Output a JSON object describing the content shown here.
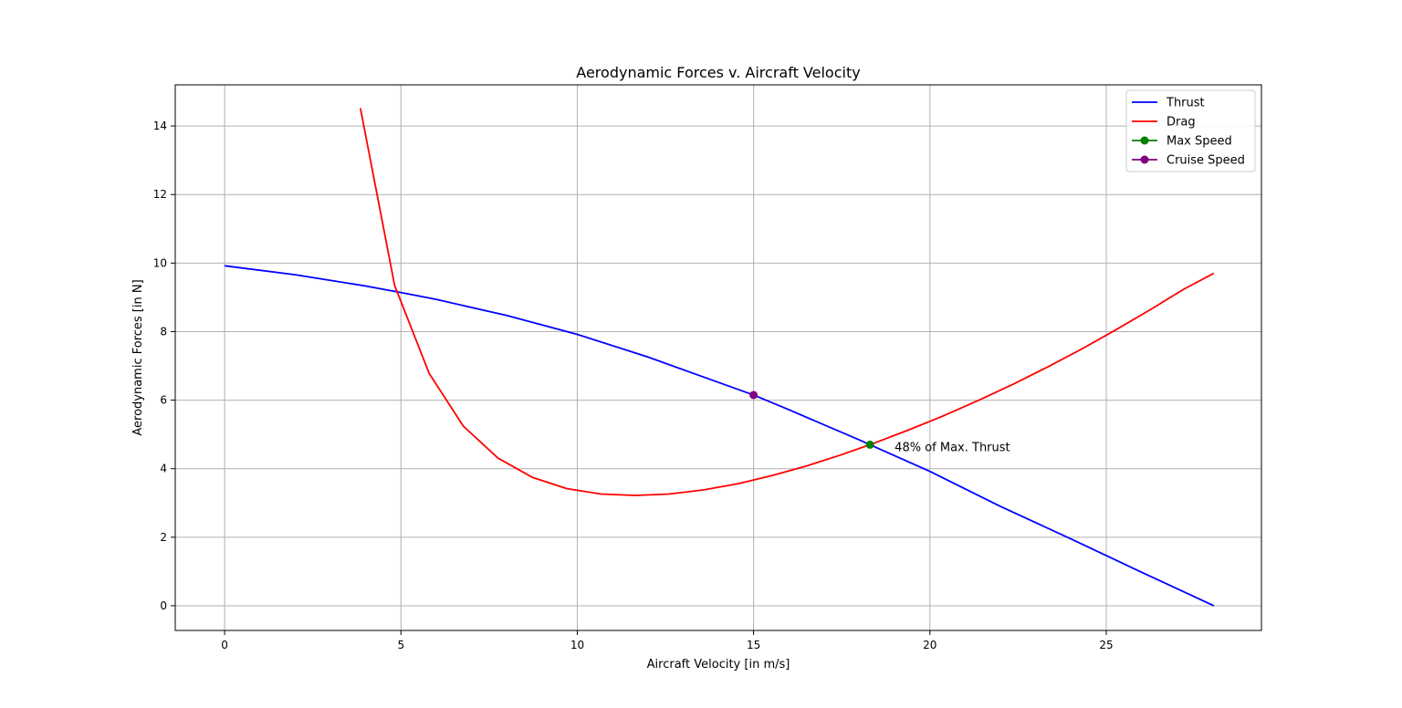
{
  "chart_data": {
    "type": "line",
    "title": "Aerodynamic Forces v. Aircraft Velocity",
    "xlabel": "Aircraft Velocity [in m/s]",
    "ylabel": "Aerodynamic Forces [in N]",
    "xlim": [
      -1.4,
      29.4
    ],
    "ylim": [
      -0.72,
      15.2
    ],
    "xticks": [
      0,
      5,
      10,
      15,
      20,
      25
    ],
    "yticks": [
      0,
      2,
      4,
      6,
      8,
      10,
      12,
      14
    ],
    "grid": true,
    "legend_position": "upper right",
    "series": [
      {
        "name": "Thrust",
        "kind": "line",
        "color": "#0000ff",
        "x": [
          0,
          2,
          4,
          5,
          6,
          8,
          10,
          12,
          14,
          15,
          16,
          18,
          18.3,
          20,
          22,
          24,
          26,
          28.05
        ],
        "y": [
          9.92,
          9.66,
          9.33,
          9.14,
          8.94,
          8.47,
          7.92,
          7.26,
          6.52,
          6.15,
          5.72,
          4.84,
          4.7,
          3.92,
          2.9,
          1.95,
          0.98,
          0.0
        ]
      },
      {
        "name": "Drag",
        "kind": "line",
        "color": "#ff0000",
        "x": [
          3.85,
          4.82,
          5.8,
          6.77,
          7.75,
          8.72,
          9.7,
          10.67,
          11.64,
          12.6,
          13.57,
          14.55,
          15.52,
          16.5,
          17.47,
          18.3,
          19.42,
          20.4,
          21.37,
          22.35,
          23.32,
          24.3,
          25.27,
          26.25,
          27.22,
          28.05
        ],
        "y": [
          14.52,
          9.35,
          6.78,
          5.24,
          4.31,
          3.75,
          3.42,
          3.26,
          3.22,
          3.26,
          3.38,
          3.56,
          3.8,
          4.08,
          4.4,
          4.7,
          5.14,
          5.55,
          5.99,
          6.46,
          6.96,
          7.49,
          8.05,
          8.64,
          9.25,
          9.7
        ]
      },
      {
        "name": "Max Speed",
        "kind": "marker",
        "color": "#008000",
        "x": [
          18.3
        ],
        "y": [
          4.7
        ]
      },
      {
        "name": "Cruise Speed",
        "kind": "marker",
        "color": "#800080",
        "x": [
          15.0
        ],
        "y": [
          6.15
        ]
      }
    ],
    "annotations": [
      {
        "text": "48% of Max. Thrust",
        "x": 19.0,
        "y": 4.62
      }
    ]
  }
}
